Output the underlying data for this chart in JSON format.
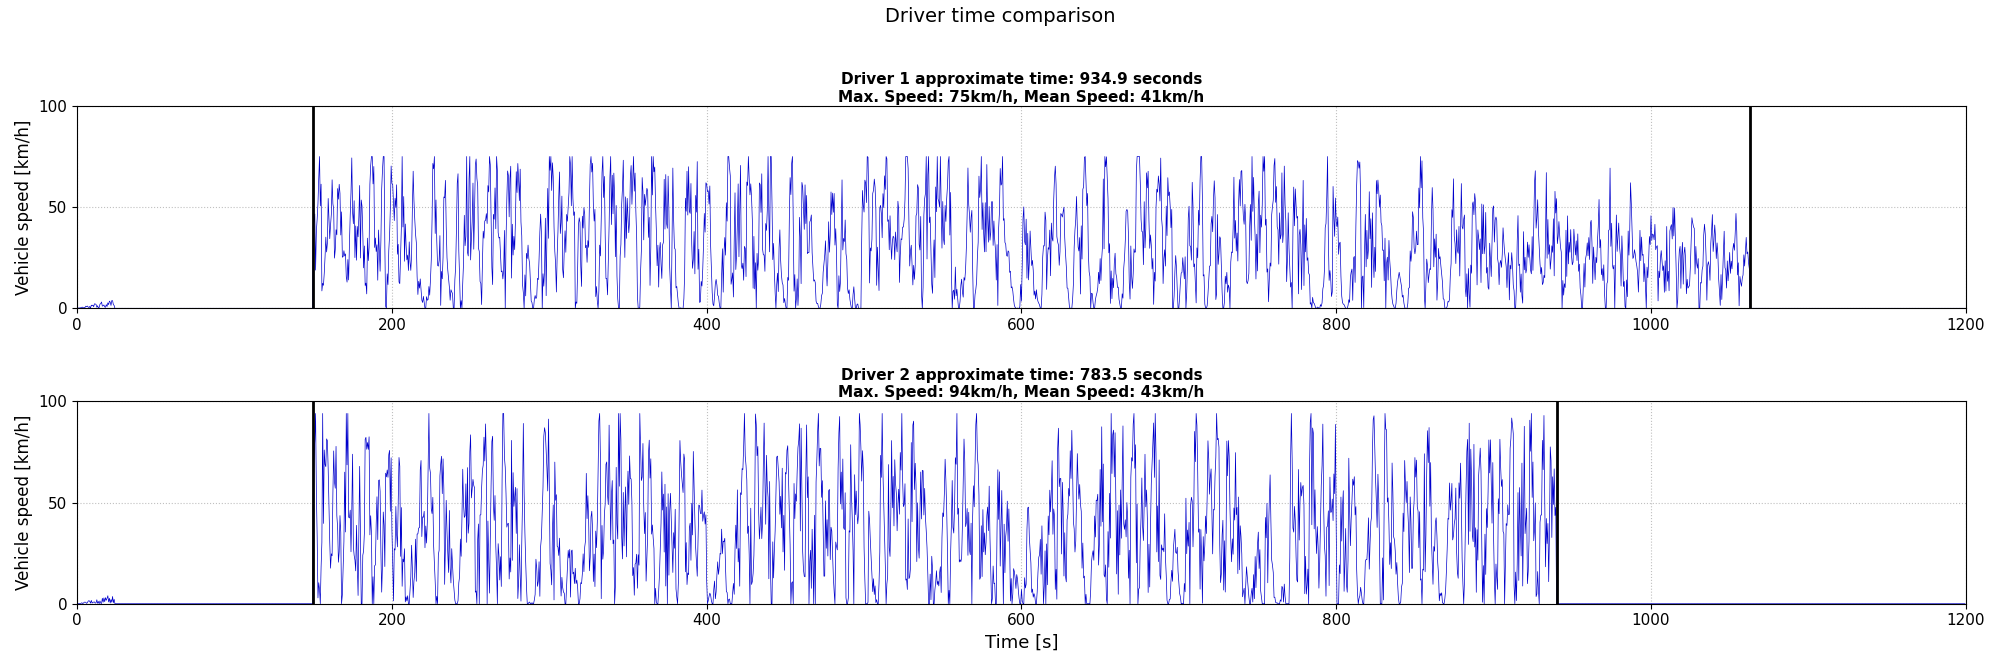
{
  "title": "Driver time comparison",
  "subplot1_title_line1": "Driver 1 approximate time: 934.9 seconds",
  "subplot1_title_line2": "Max. Speed: 75km/h, Mean Speed: 41km/h",
  "subplot2_title_line1": "Driver 2 approximate time: 783.5 seconds",
  "subplot2_title_line2": "Max. Speed: 94km/h, Mean Speed: 43km/h",
  "ylabel": "Vehicle speed [km/h]",
  "xlabel": "Time [s]",
  "xlim": [
    0,
    1200
  ],
  "ylim": [
    0,
    100
  ],
  "xticks": [
    0,
    200,
    400,
    600,
    800,
    1000,
    1200
  ],
  "yticks": [
    0,
    50,
    100
  ],
  "driver1_vline1": 150,
  "driver1_vline2": 1063,
  "driver2_vline1": 150,
  "driver2_vline2": 940,
  "driver1_max_speed": 75,
  "driver1_mean_speed": 41,
  "driver2_max_speed": 94,
  "driver2_mean_speed": 43,
  "line_color": "#0000cc",
  "vline_color": "#000000",
  "grid_color": "#c0c0c0",
  "bg_color": "#ffffff",
  "seed1": 42,
  "seed2": 77
}
